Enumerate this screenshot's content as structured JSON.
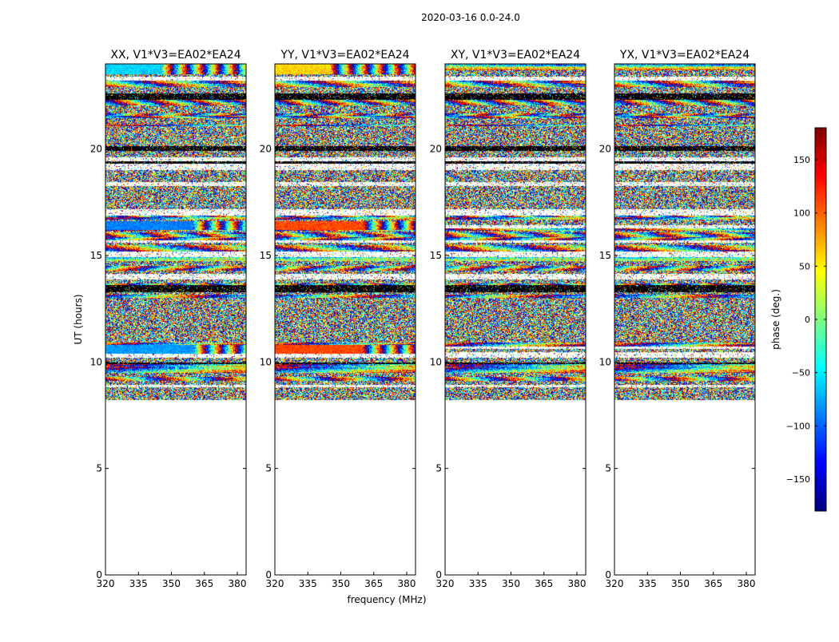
{
  "figure": {
    "suptitle": "2020-03-16 0.0-24.0",
    "xlabel": "frequency (MHz)",
    "ylabel": "UT (hours)"
  },
  "colorbar": {
    "label": "phase (deg.)",
    "min": -180,
    "max": 180,
    "ticks": [
      150,
      100,
      50,
      0,
      -50,
      -100,
      -150
    ],
    "tick_labels": [
      "150",
      "100",
      "50",
      "0",
      "−50",
      "−100",
      "−150"
    ],
    "colormap": "jet",
    "stops": [
      "#00007f",
      "#0000ff",
      "#007fff",
      "#00ffff",
      "#7fff7f",
      "#ffff00",
      "#ff7f00",
      "#ff0000",
      "#7f0000"
    ]
  },
  "chart_data": [
    {
      "type": "heatmap",
      "title": "XX, V1*V3=EA02*EA24",
      "xlim": [
        320,
        384
      ],
      "ylim": [
        0,
        24
      ],
      "xticks": [
        320,
        335,
        350,
        365,
        380
      ],
      "yticks": [
        0,
        5,
        10,
        15,
        20
      ],
      "data_range_hours": [
        8.2,
        24.0
      ],
      "coherent_bands": [
        {
          "t0": 16.2,
          "t1": 16.6,
          "phase": -90,
          "f_end": 360
        },
        {
          "t0": 10.4,
          "t1": 10.8,
          "phase": -80,
          "f_end": 360
        },
        {
          "t0": 23.5,
          "t1": 24.0,
          "phase": -60,
          "f_end": 345
        }
      ]
    },
    {
      "type": "heatmap",
      "title": "YY, V1*V3=EA02*EA24",
      "xlim": [
        320,
        384
      ],
      "ylim": [
        0,
        24
      ],
      "xticks": [
        320,
        335,
        350,
        365,
        380
      ],
      "yticks": [
        0,
        5,
        10,
        15,
        20
      ],
      "data_range_hours": [
        8.2,
        24.0
      ],
      "coherent_bands": [
        {
          "t0": 16.2,
          "t1": 16.6,
          "phase": 110,
          "f_end": 360
        },
        {
          "t0": 10.4,
          "t1": 10.8,
          "phase": 110,
          "f_end": 360
        },
        {
          "t0": 23.5,
          "t1": 24.0,
          "phase": 60,
          "f_end": 345
        }
      ]
    },
    {
      "type": "heatmap",
      "title": "XY, V1*V3=EA02*EA24",
      "xlim": [
        320,
        384
      ],
      "ylim": [
        0,
        24
      ],
      "xticks": [
        320,
        335,
        350,
        365,
        380
      ],
      "yticks": [
        0,
        5,
        10,
        15,
        20
      ],
      "data_range_hours": [
        8.2,
        24.0
      ],
      "coherent_bands": []
    },
    {
      "type": "heatmap",
      "title": "YX, V1*V3=EA02*EA24",
      "xlim": [
        320,
        384
      ],
      "ylim": [
        0,
        24
      ],
      "xticks": [
        320,
        335,
        350,
        365,
        380
      ],
      "yticks": [
        0,
        5,
        10,
        15,
        20
      ],
      "data_range_hours": [
        8.2,
        24.0
      ],
      "coherent_bands": []
    }
  ]
}
